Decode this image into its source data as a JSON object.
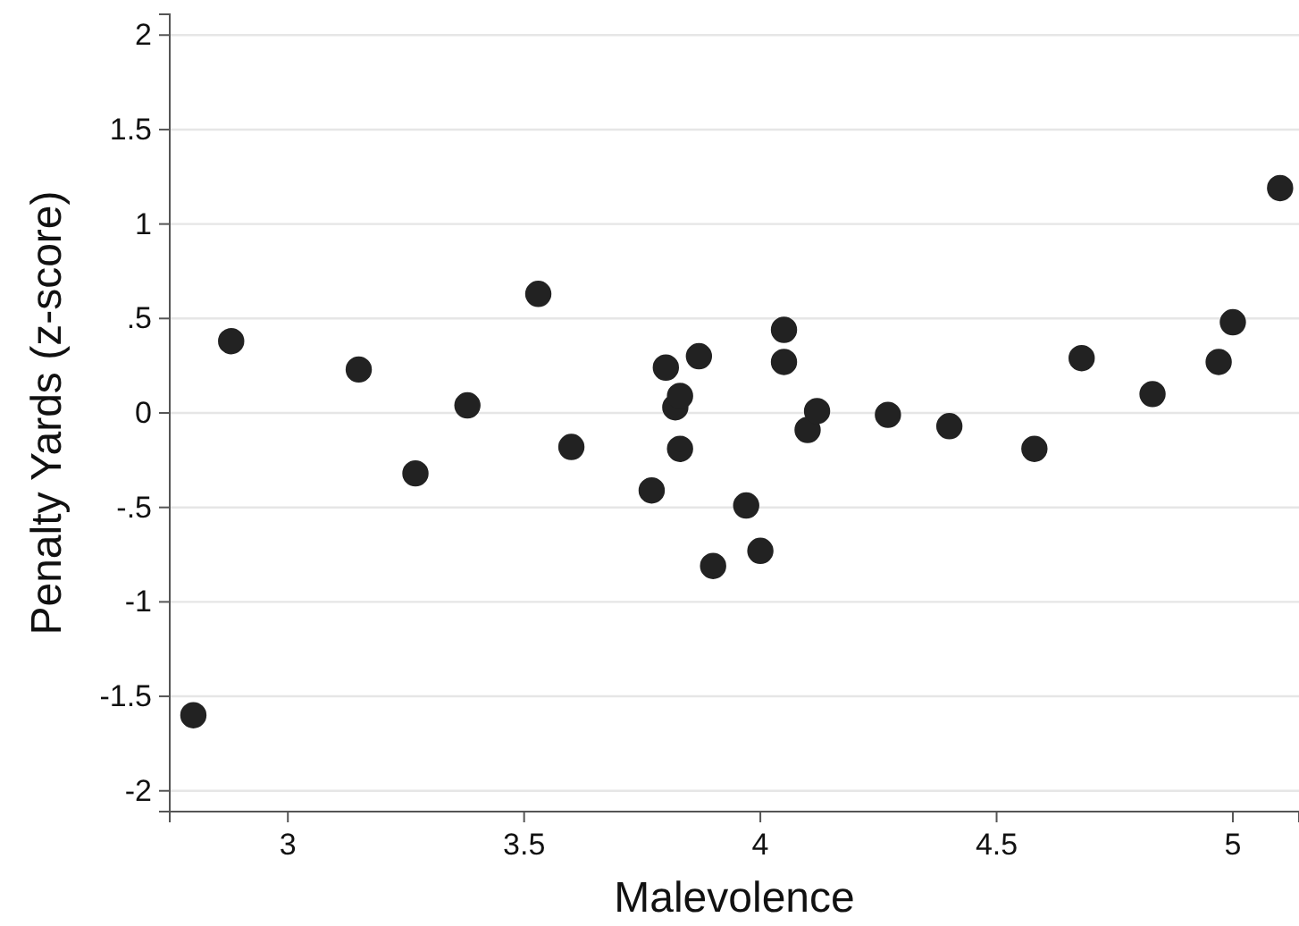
{
  "chart_data": {
    "type": "scatter",
    "xlabel": "Malevolence",
    "ylabel": "Penalty Yards (z-score)",
    "xlim": [
      2.75,
      5.14
    ],
    "xticks": [
      3,
      3.5,
      4,
      4.5,
      5
    ],
    "ylim": [
      -2.11,
      2.11
    ],
    "yticks": [
      2,
      1.5,
      1,
      {
        "value": 0.5,
        "label": ".5"
      },
      0,
      {
        "value": -0.5,
        "label": "-.5"
      },
      -1,
      -1.5,
      -2
    ],
    "grid": "y",
    "marker": "circle",
    "series": [
      {
        "color": "#222222",
        "x": [
          2.8,
          2.88,
          3.15,
          3.27,
          3.38,
          3.53,
          3.6,
          3.77,
          3.8,
          3.82,
          3.83,
          3.83,
          3.87,
          3.9,
          3.97,
          4.0,
          4.05,
          4.05,
          4.1,
          4.12,
          4.27,
          4.4,
          4.58,
          4.68,
          4.83,
          4.97,
          5.0,
          5.1
        ],
        "values": [
          -1.6,
          0.38,
          0.23,
          -0.32,
          0.04,
          0.63,
          -0.18,
          -0.41,
          0.24,
          0.03,
          0.09,
          -0.19,
          0.3,
          -0.81,
          -0.49,
          -0.73,
          0.44,
          0.27,
          -0.09,
          0.01,
          -0.01,
          -0.07,
          -0.19,
          0.29,
          0.1,
          0.27,
          0.48,
          1.19
        ]
      }
    ]
  }
}
